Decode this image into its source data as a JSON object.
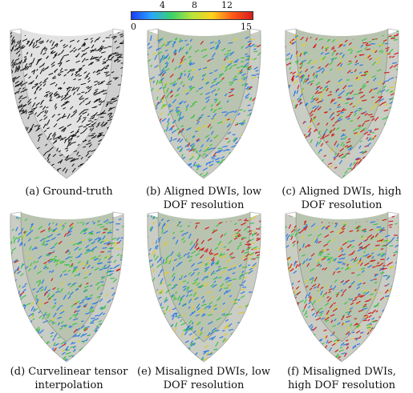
{
  "colorbar": {
    "ticks": [
      "4",
      "8",
      "12"
    ],
    "min_label": "0",
    "max_label": "15",
    "colors": [
      "#1b3cff",
      "#2aa8ff",
      "#3cd26a",
      "#b8e43a",
      "#ffd21e",
      "#ff5a1a",
      "#d81c1c"
    ]
  },
  "panels": [
    {
      "caption_line1": "(a) Ground-truth",
      "caption_line2": "",
      "style": "mono"
    },
    {
      "caption_line1": "(b) Aligned DWIs, low",
      "caption_line2": "DOF resolution",
      "style": "color-low"
    },
    {
      "caption_line1": "(c) Aligned DWIs, high",
      "caption_line2": "DOF resolution",
      "style": "color-high"
    },
    {
      "caption_line1": "(d) Curvelinear tensor",
      "caption_line2": "interpolation",
      "style": "color-low"
    },
    {
      "caption_line1": "(e) Misaligned DWIs, low",
      "caption_line2": "DOF resolution",
      "style": "color-mid"
    },
    {
      "caption_line1": "(f) Misaligned DWIs,",
      "caption_line2": "high DOF resolution",
      "style": "color-high"
    }
  ]
}
